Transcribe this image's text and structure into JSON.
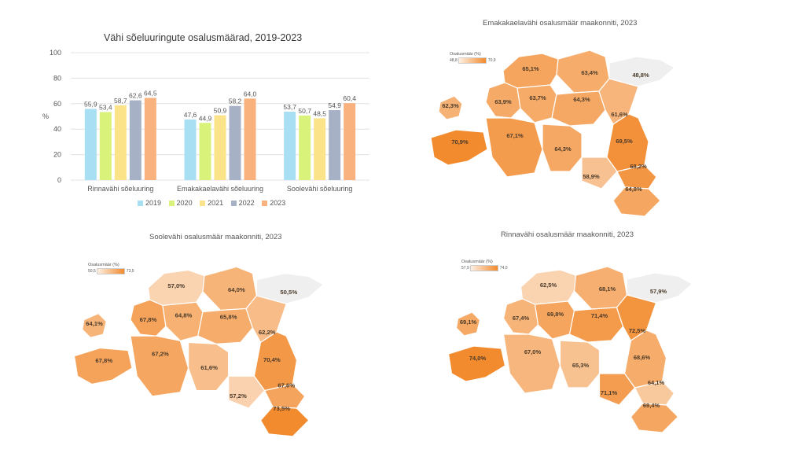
{
  "chart_data": [
    {
      "type": "bar",
      "title": "Vähi sõeluuringute osalusmäärad, 2019-2023",
      "ylabel": "%",
      "ylim": [
        0,
        100
      ],
      "yticks": [
        0,
        20,
        40,
        60,
        80,
        100
      ],
      "categories": [
        "Rinnavähi sõeluuring",
        "Emakakaelavähi sõeluuring",
        "Soolevähi sõeluuring"
      ],
      "series": [
        {
          "name": "2019",
          "color": "#a9dff2",
          "values": [
            55.9,
            47.6,
            53.7
          ]
        },
        {
          "name": "2020",
          "color": "#d9f27a",
          "values": [
            53.4,
            44.9,
            50.7
          ]
        },
        {
          "name": "2021",
          "color": "#fbe38a",
          "values": [
            58.7,
            50.9,
            48.5
          ]
        },
        {
          "name": "2022",
          "color": "#a7b1c6",
          "values": [
            62.6,
            58.2,
            54.9
          ]
        },
        {
          "name": "2023",
          "color": "#f9b17e",
          "values": [
            64.5,
            64.0,
            60.4
          ]
        }
      ],
      "value_labels": [
        [
          "55,9",
          "47,6",
          "53,7"
        ],
        [
          "53,4",
          "44,9",
          "50,7"
        ],
        [
          "58,7",
          "50,9",
          "48,5"
        ],
        [
          "62,6",
          "58,2",
          "54,9"
        ],
        [
          "64,5",
          "64,0",
          "60,4"
        ]
      ],
      "legend_position": "bottom",
      "grid": true
    },
    {
      "type": "heatmap",
      "title": "Emakakaelavähi osalusmäär maakonniti, 2023",
      "legend_title": "Osalusmäär (%)",
      "scale_min_label": "48,8",
      "scale_max_label": "70,9",
      "scale_min": 48.8,
      "scale_max": 70.9,
      "color_low": "#fdf0e4",
      "color_high": "#f28a2e",
      "values": [
        65.1,
        63.4,
        48.8,
        62.3,
        63.9,
        63.7,
        64.3,
        61.6,
        70.9,
        67.1,
        64.3,
        69.5,
        68.2,
        58.9,
        64.8
      ],
      "labels": [
        "65,1%",
        "63,4%",
        "48,8%",
        "62,3%",
        "63,9%",
        "63,7%",
        "64,3%",
        "61,6%",
        "70,9%",
        "67,1%",
        "64,3%",
        "69,5%",
        "68,2%",
        "58,9%",
        "64,8%"
      ]
    },
    {
      "type": "heatmap",
      "title": "Soolevähi osalusmäär maakonniti, 2023",
      "legend_title": "Osalusmäär (%)",
      "scale_min_label": "50,5",
      "scale_max_label": "73,5",
      "scale_min": 50.5,
      "scale_max": 73.5,
      "color_low": "#fdf0e4",
      "color_high": "#f28a2e",
      "values": [
        57.0,
        64.0,
        50.5,
        64.1,
        67.8,
        64.8,
        65.8,
        62.2,
        67.8,
        67.2,
        61.6,
        70.4,
        67.6,
        57.2,
        73.5
      ],
      "labels": [
        "57,0%",
        "64,0%",
        "50,5%",
        "64,1%",
        "67,8%",
        "64,8%",
        "65,8%",
        "62,2%",
        "67,8%",
        "67,2%",
        "61,6%",
        "70,4%",
        "67,6%",
        "57,2%",
        "73,5%"
      ]
    },
    {
      "type": "heatmap",
      "title": "Rinnavähi osalusmäär maakonniti, 2023",
      "legend_title": "Osalusmäär (%)",
      "scale_min_label": "57,9",
      "scale_max_label": "74,0",
      "scale_min": 57.9,
      "scale_max": 74.0,
      "color_low": "#fdf0e4",
      "color_high": "#f28a2e",
      "values": [
        62.5,
        68.1,
        57.9,
        69.1,
        67.4,
        69.8,
        71.4,
        72.5,
        74.0,
        67.0,
        65.3,
        68.6,
        64.1,
        71.1,
        69.4
      ],
      "labels": [
        "62,5%",
        "68,1%",
        "57,9%",
        "69,1%",
        "67,4%",
        "69,8%",
        "71,4%",
        "72,5%",
        "74,0%",
        "67,0%",
        "65,3%",
        "68,6%",
        "64,1%",
        "71,1%",
        "69,4%"
      ]
    }
  ]
}
